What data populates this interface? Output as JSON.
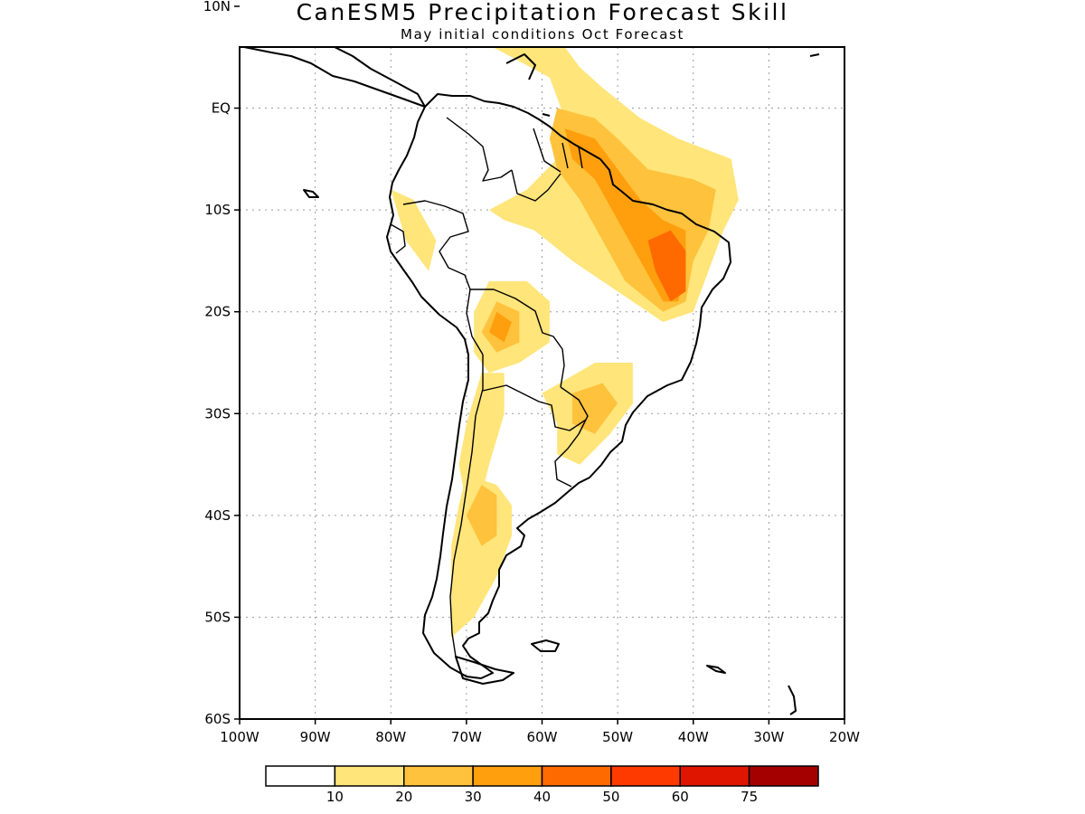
{
  "title": "CanESM5 Precipitation Forecast Skill",
  "subtitle": "May initial conditions  Oct Forecast",
  "map": {
    "lon_range": [
      -100,
      -20
    ],
    "lat_range": [
      -60,
      6
    ],
    "grid": true,
    "lon_ticks": [
      {
        "value": -100,
        "label": "100W"
      },
      {
        "value": -90,
        "label": "90W"
      },
      {
        "value": -80,
        "label": "80W"
      },
      {
        "value": -70,
        "label": "70W"
      },
      {
        "value": -60,
        "label": "60W"
      },
      {
        "value": -50,
        "label": "50W"
      },
      {
        "value": -40,
        "label": "40W"
      },
      {
        "value": -30,
        "label": "30W"
      },
      {
        "value": -20,
        "label": "20W"
      }
    ],
    "lat_ticks": [
      {
        "value": 10,
        "label": "10N"
      },
      {
        "value": 0,
        "label": "EQ"
      },
      {
        "value": -10,
        "label": "10S"
      },
      {
        "value": -20,
        "label": "20S"
      },
      {
        "value": -30,
        "label": "30S"
      },
      {
        "value": -40,
        "label": "40S"
      },
      {
        "value": -50,
        "label": "50S"
      },
      {
        "value": -60,
        "label": "60S"
      }
    ],
    "skill_regions": [
      {
        "level": 1,
        "coords": [
          [
            -74,
            10
          ],
          [
            -68,
            10.5
          ],
          [
            -62,
            10
          ],
          [
            -58,
            7
          ],
          [
            -55,
            4
          ],
          [
            -52,
            2
          ],
          [
            -47,
            -1
          ],
          [
            -42,
            -3
          ],
          [
            -35,
            -5
          ],
          [
            -34,
            -9
          ],
          [
            -36,
            -12
          ],
          [
            -38,
            -16
          ],
          [
            -40,
            -20
          ],
          [
            -44,
            -21
          ],
          [
            -50,
            -18
          ],
          [
            -56,
            -15
          ],
          [
            -61,
            -12
          ],
          [
            -65,
            -11
          ],
          [
            -67,
            -10
          ],
          [
            -62,
            -8
          ],
          [
            -58,
            -5
          ],
          [
            -57,
            -1
          ],
          [
            -59,
            3
          ],
          [
            -64,
            5
          ],
          [
            -69,
            7
          ],
          [
            -73,
            8
          ]
        ]
      },
      {
        "level": 2,
        "coords": [
          [
            -58,
            0
          ],
          [
            -53,
            -1
          ],
          [
            -50,
            -3
          ],
          [
            -46,
            -6
          ],
          [
            -40,
            -7
          ],
          [
            -37,
            -8
          ],
          [
            -38,
            -12
          ],
          [
            -40,
            -15
          ],
          [
            -41,
            -19
          ],
          [
            -44,
            -20
          ],
          [
            -49,
            -17
          ],
          [
            -52,
            -13
          ],
          [
            -55,
            -9
          ],
          [
            -58,
            -6
          ],
          [
            -59,
            -3
          ]
        ]
      },
      {
        "level": 3,
        "coords": [
          [
            -57,
            -2
          ],
          [
            -53,
            -3
          ],
          [
            -50,
            -6
          ],
          [
            -47,
            -9
          ],
          [
            -44,
            -11
          ],
          [
            -41,
            -12
          ],
          [
            -41,
            -16
          ],
          [
            -42,
            -19
          ],
          [
            -44,
            -19
          ],
          [
            -47,
            -15
          ],
          [
            -50,
            -11
          ],
          [
            -53,
            -7
          ],
          [
            -56,
            -5
          ]
        ]
      },
      {
        "level": 4,
        "coords": [
          [
            -46,
            -13
          ],
          [
            -43,
            -12
          ],
          [
            -41,
            -14
          ],
          [
            -41,
            -18
          ],
          [
            -43,
            -19
          ],
          [
            -45,
            -16
          ]
        ]
      },
      {
        "level": 1,
        "coords": [
          [
            -67,
            -17
          ],
          [
            -62,
            -17
          ],
          [
            -59,
            -19
          ],
          [
            -59,
            -23
          ],
          [
            -63,
            -25
          ],
          [
            -67,
            -26
          ],
          [
            -69,
            -24
          ],
          [
            -69,
            -20
          ]
        ]
      },
      {
        "level": 2,
        "coords": [
          [
            -66,
            -19
          ],
          [
            -63,
            -20
          ],
          [
            -63,
            -23
          ],
          [
            -66,
            -24
          ],
          [
            -68,
            -22
          ]
        ]
      },
      {
        "level": 3,
        "coords": [
          [
            -66,
            -20
          ],
          [
            -64,
            -21
          ],
          [
            -65,
            -23
          ],
          [
            -67,
            -22
          ]
        ]
      },
      {
        "level": 1,
        "coords": [
          [
            -68,
            -26
          ],
          [
            -65,
            -26
          ],
          [
            -65,
            -30
          ],
          [
            -67,
            -35
          ],
          [
            -68,
            -38
          ],
          [
            -70,
            -39
          ],
          [
            -71,
            -35
          ],
          [
            -70,
            -31
          ]
        ]
      },
      {
        "level": 1,
        "coords": [
          [
            -70,
            -36
          ],
          [
            -66,
            -37
          ],
          [
            -64,
            -39
          ],
          [
            -64,
            -42
          ],
          [
            -66,
            -46
          ],
          [
            -69,
            -50
          ],
          [
            -72,
            -52
          ],
          [
            -72,
            -48
          ],
          [
            -72,
            -43
          ],
          [
            -71,
            -39
          ]
        ]
      },
      {
        "level": 2,
        "coords": [
          [
            -68,
            -37
          ],
          [
            -66,
            -38
          ],
          [
            -66,
            -42
          ],
          [
            -68,
            -43
          ],
          [
            -70,
            -40
          ]
        ]
      },
      {
        "level": 1,
        "coords": [
          [
            -60,
            -28
          ],
          [
            -53,
            -25
          ],
          [
            -48,
            -25
          ],
          [
            -48,
            -29
          ],
          [
            -51,
            -32
          ],
          [
            -55,
            -35
          ],
          [
            -58,
            -34
          ],
          [
            -58,
            -31
          ]
        ]
      },
      {
        "level": 2,
        "coords": [
          [
            -56,
            -28
          ],
          [
            -52,
            -27
          ],
          [
            -50,
            -29
          ],
          [
            -53,
            -32
          ],
          [
            -56,
            -31
          ]
        ]
      },
      {
        "level": 1,
        "coords": [
          [
            -80,
            -8
          ],
          [
            -77,
            -9
          ],
          [
            -74,
            -13
          ],
          [
            -75,
            -16
          ],
          [
            -78,
            -13
          ]
        ]
      }
    ]
  },
  "colorbar": {
    "colors": [
      "#ffffff",
      "#ffe57a",
      "#ffc23c",
      "#ff9f0e",
      "#ff6a00",
      "#ff3a00",
      "#e01500",
      "#a50000"
    ],
    "labels": [
      "10",
      "20",
      "30",
      "40",
      "50",
      "60",
      "75"
    ]
  }
}
